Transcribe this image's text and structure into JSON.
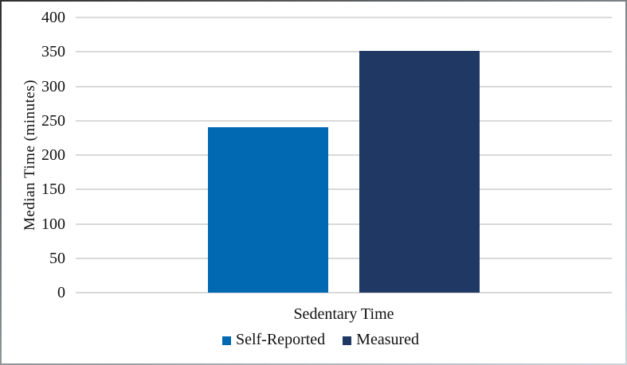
{
  "chart_data": {
    "type": "bar",
    "title": "",
    "categories": [
      "Sedentary Time"
    ],
    "series": [
      {
        "name": "Self-Reported",
        "values": [
          240
        ],
        "color": "#0069b1"
      },
      {
        "name": "Measured",
        "values": [
          352
        ],
        "color": "#1f3864"
      }
    ],
    "xlabel": "Sedentary Time",
    "ylabel": "Median Time (minutes)",
    "ylim": [
      0,
      400
    ],
    "yticks": [
      0,
      50,
      100,
      150,
      200,
      250,
      300,
      350,
      400
    ],
    "grid": "horizontal",
    "gridline_color": "#d9d9d9",
    "legend_position": "bottom-center",
    "text_color": "#111111",
    "background_color": "#ffffff"
  }
}
